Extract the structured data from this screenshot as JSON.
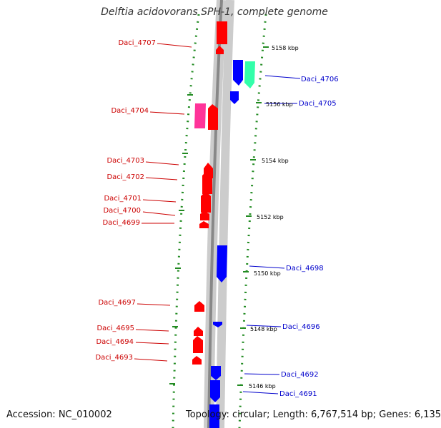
{
  "title": "Delftia acidovorans SPH-1, complete genome",
  "footer": {
    "accession": "Accession: NC_010002",
    "topology": "Topology: circular; Length: 6,767,514 bp; Genes: 6,135"
  },
  "colors": {
    "forward_gene": "#ff0000",
    "reverse_gene": "#0000ff",
    "rna_gene": "#ff3399",
    "cds_alt": "#33ffaa",
    "backbone": "#888888",
    "tick": "#228b22"
  },
  "scale_labels": [
    "5158 kbp",
    "5156 kbp",
    "5154 kbp",
    "5152 kbp",
    "5150 kbp",
    "5148 kbp",
    "5146 kbp"
  ],
  "genes_left": [
    "Daci_4707",
    "Daci_4704",
    "Daci_4703",
    "Daci_4702",
    "Daci_4701",
    "Daci_4700",
    "Daci_4699",
    "Daci_4697",
    "Daci_4695",
    "Daci_4694",
    "Daci_4693"
  ],
  "genes_right": [
    "Daci_4706",
    "Daci_4705",
    "Daci_4698",
    "Daci_4696",
    "Daci_4692",
    "Daci_4691"
  ]
}
